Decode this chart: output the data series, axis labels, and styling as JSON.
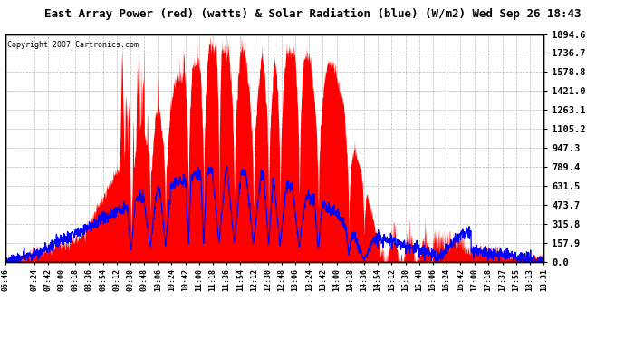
{
  "title": "East Array Power (red) (watts) & Solar Radiation (blue) (W/m2) Wed Sep 26 18:43",
  "copyright": "Copyright 2007 Cartronics.com",
  "ymax": 1894.6,
  "ymin": 0.0,
  "yticks": [
    0.0,
    157.9,
    315.8,
    473.7,
    631.5,
    789.4,
    947.3,
    1105.2,
    1263.1,
    1421.0,
    1578.8,
    1736.7,
    1894.6
  ],
  "bg_color": "#ffffff",
  "plot_bg_color": "#ffffff",
  "grid_color": "#aaaaaa",
  "red_color": "#ff0000",
  "blue_color": "#0000ff",
  "xtick_labels": [
    "06:46",
    "07:24",
    "07:42",
    "08:00",
    "08:18",
    "08:36",
    "08:54",
    "09:12",
    "09:30",
    "09:48",
    "10:06",
    "10:24",
    "10:42",
    "11:00",
    "11:18",
    "11:36",
    "11:54",
    "12:12",
    "12:30",
    "12:48",
    "13:06",
    "13:24",
    "13:42",
    "14:00",
    "14:18",
    "14:36",
    "14:54",
    "15:12",
    "15:30",
    "15:48",
    "16:06",
    "16:24",
    "16:42",
    "17:00",
    "17:18",
    "17:37",
    "17:55",
    "18:13",
    "18:31"
  ]
}
